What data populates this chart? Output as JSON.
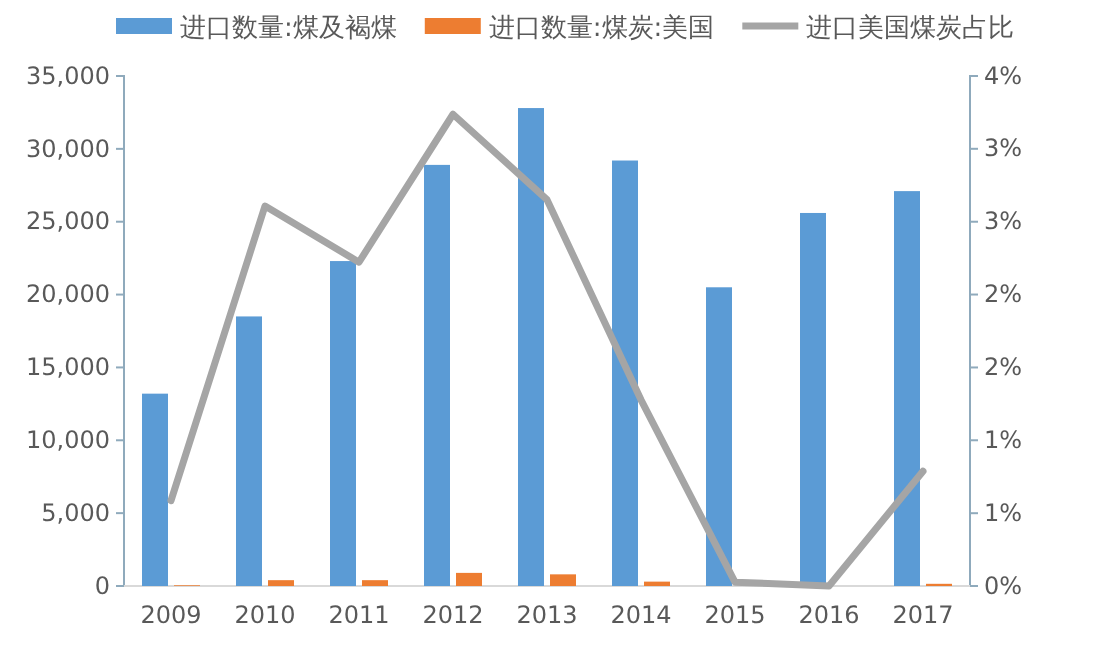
{
  "chart_data": {
    "type": "bar",
    "categories": [
      "2009",
      "2010",
      "2011",
      "2012",
      "2013",
      "2014",
      "2015",
      "2016",
      "2017"
    ],
    "series": [
      {
        "name": "进口数量:煤及褐煤",
        "color": "#5b9bd5",
        "values": [
          13200,
          18500,
          22300,
          28900,
          32800,
          29200,
          20500,
          25600,
          27100
        ]
      },
      {
        "name": "进口数量:煤炭:美国",
        "color": "#ed7d31",
        "values": [
          50,
          400,
          400,
          900,
          800,
          300,
          0,
          0,
          150
        ]
      },
      {
        "name": "进口美国煤炭占比",
        "type": "line",
        "axis": "y2",
        "color": "#a5a5a5",
        "values": [
          0.67,
          2.98,
          2.54,
          3.7,
          3.03,
          1.46,
          0.03,
          0,
          0.9
        ]
      }
    ],
    "ylim": [
      0,
      35000
    ],
    "yticks": [
      0,
      {
        "value": 5000,
        "label": "5,000"
      },
      {
        "value": 10000,
        "label": "10,000"
      },
      {
        "value": 15000,
        "label": "15,000"
      },
      {
        "value": 20000,
        "label": "20,000"
      },
      {
        "value": 25000,
        "label": "25,000"
      },
      {
        "value": 30000,
        "label": "30,000"
      },
      {
        "value": 35000,
        "label": "35,000"
      }
    ],
    "y2lim": [
      0,
      4
    ],
    "y2ticks": [
      {
        "value": 0,
        "label": "0%"
      },
      {
        "value": 0.571,
        "label": "1%"
      },
      {
        "value": 1.143,
        "label": "1%"
      },
      {
        "value": 1.714,
        "label": "2%"
      },
      {
        "value": 2.286,
        "label": "2%"
      },
      {
        "value": 2.857,
        "label": "3%"
      },
      {
        "value": 3.429,
        "label": "3%"
      },
      {
        "value": 4,
        "label": "4%"
      }
    ],
    "legend": "top",
    "grid": false
  }
}
